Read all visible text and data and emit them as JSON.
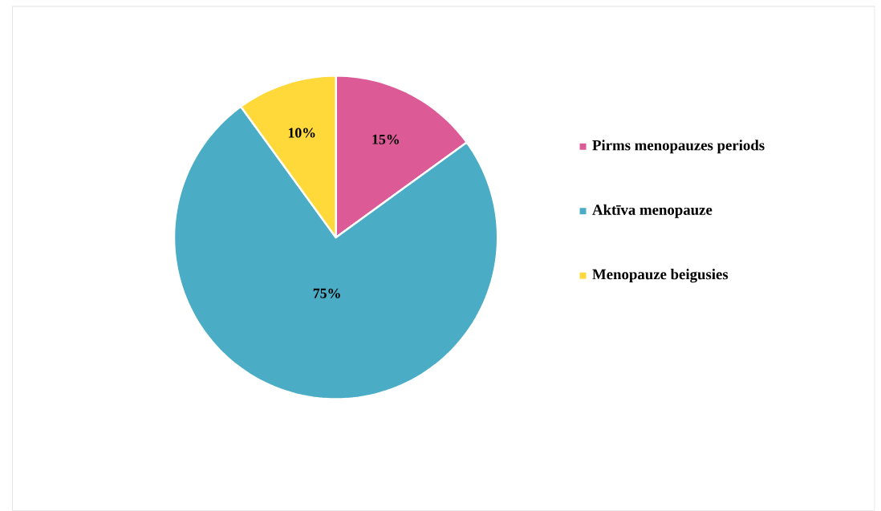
{
  "chart_data": {
    "type": "pie",
    "categories": [
      "Pirms menopauzes periods",
      "Aktīva menopauze",
      "Menopauze beigusies"
    ],
    "values": [
      15,
      75,
      10
    ],
    "colors": [
      "#dc5a96",
      "#4bacc6",
      "#ffd93a"
    ],
    "value_labels": [
      "15%",
      "75%",
      "10%"
    ],
    "legend": "right"
  }
}
